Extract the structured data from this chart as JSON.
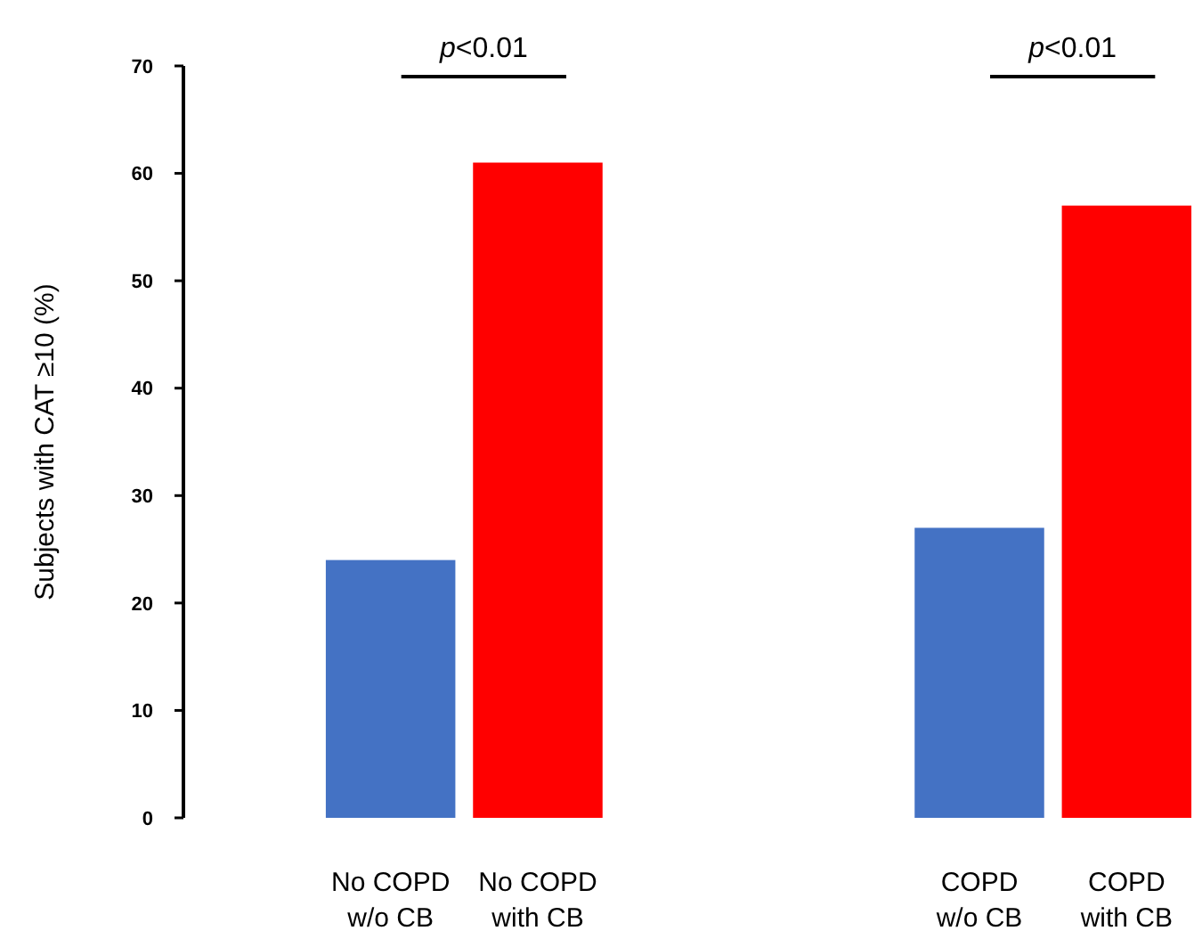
{
  "chart_data": {
    "type": "bar",
    "ylabel": "Subjects with CAT ≥10 (%)",
    "categories": [
      "No COPD\nw/o CB",
      "No COPD\nwith CB",
      null,
      null,
      "COPD\nw/o CB",
      "COPD\nwith CB"
    ],
    "values": [
      24,
      61,
      null,
      null,
      27,
      57
    ],
    "colors": [
      "#4472c4",
      "#ff0000",
      null,
      null,
      "#4472c4",
      "#ff0000"
    ],
    "ylim": [
      0,
      70
    ],
    "yticks": [
      0,
      10,
      20,
      30,
      40,
      50,
      60,
      70
    ],
    "annotations": [
      "p<0.01",
      "p<0.01"
    ]
  }
}
